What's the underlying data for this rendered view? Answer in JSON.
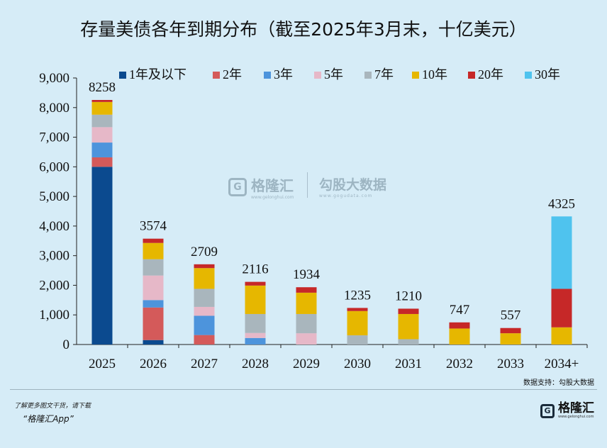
{
  "title": "存量美债各年到期分布（截至2025年3月末，十亿美元）",
  "source_note": "数据支持：勾股大数据",
  "footer": {
    "line1": "了解更多图文干货，请下载",
    "line2": "“格隆汇App”"
  },
  "watermark": {
    "brand": "格隆汇",
    "brand_url": "www.gelonghui.com",
    "data_brand": "勾股大数据",
    "data_url": "www.gogudata.com"
  },
  "brand_logo": {
    "name": "格隆汇",
    "url": "www.gelonghui.com"
  },
  "chart_data": {
    "type": "bar",
    "stacked": true,
    "categories": [
      "2025",
      "2026",
      "2027",
      "2028",
      "2029",
      "2030",
      "2031",
      "2032",
      "2033",
      "2034+"
    ],
    "ylim": [
      0,
      9000
    ],
    "yticks": [
      0,
      1000,
      2000,
      3000,
      4000,
      5000,
      6000,
      7000,
      8000,
      9000
    ],
    "ytick_labels": [
      "0",
      "1,000",
      "2,000",
      "3,000",
      "4,000",
      "5,000",
      "6,000",
      "7,000",
      "8,000",
      "9,000"
    ],
    "xlabel": "",
    "ylabel": "",
    "grid": false,
    "legend_position": "top",
    "totals": [
      8258,
      3574,
      2709,
      2116,
      1934,
      1235,
      1210,
      747,
      557,
      4325
    ],
    "series": [
      {
        "name": "1年及以下",
        "color": "#0b4a8f",
        "values": [
          6000,
          150,
          0,
          0,
          0,
          0,
          0,
          0,
          0,
          0
        ]
      },
      {
        "name": "2年",
        "color": "#d45a5a",
        "values": [
          320,
          1100,
          320,
          0,
          0,
          0,
          0,
          0,
          0,
          0
        ]
      },
      {
        "name": "3年",
        "color": "#4d94dc",
        "values": [
          500,
          250,
          650,
          220,
          0,
          0,
          0,
          0,
          0,
          0
        ]
      },
      {
        "name": "5年",
        "color": "#e6b8c8",
        "values": [
          520,
          830,
          300,
          170,
          380,
          0,
          0,
          0,
          0,
          0
        ]
      },
      {
        "name": "7年",
        "color": "#a9b6bd",
        "values": [
          420,
          550,
          610,
          640,
          650,
          310,
          180,
          0,
          0,
          0
        ]
      },
      {
        "name": "10年",
        "color": "#e6b700",
        "values": [
          430,
          550,
          700,
          960,
          720,
          820,
          850,
          540,
          380,
          580
        ]
      },
      {
        "name": "20年",
        "color": "#c62828",
        "values": [
          68,
          144,
          129,
          126,
          184,
          105,
          180,
          207,
          177,
          1300
        ]
      },
      {
        "name": "30年",
        "color": "#4fc3ee",
        "values": [
          0,
          0,
          0,
          0,
          0,
          0,
          0,
          0,
          0,
          2445
        ]
      }
    ]
  }
}
